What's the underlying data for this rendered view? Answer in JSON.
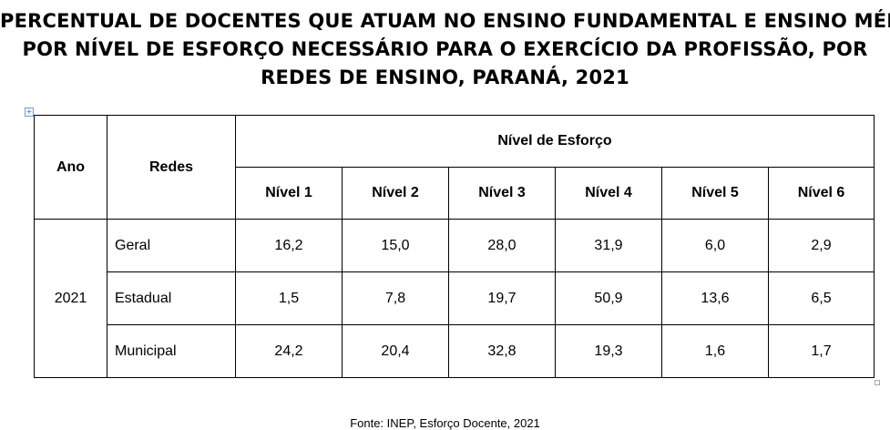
{
  "title_lines": [
    "PERCENTUAL DE DOCENTES QUE ATUAM NO ENSINO FUNDAMENTAL E ENSINO MÉDIO",
    "POR NÍVEL DE ESFORÇO NECESSÁRIO PARA O EXERCÍCIO DA PROFISSÃO, POR",
    "REDES DE ENSINO, PARANÁ, 2021"
  ],
  "table": {
    "col_ano": "Ano",
    "col_redes": "Redes",
    "group_header": "Nível de Esforço",
    "levels": [
      "Nível 1",
      "Nível 2",
      "Nível 3",
      "Nível 4",
      "Nível 5",
      "Nível 6"
    ],
    "year": "2021",
    "rows": [
      {
        "rede": "Geral",
        "values": [
          "16,2",
          "15,0",
          "28,0",
          "31,9",
          "6,0",
          "2,9"
        ]
      },
      {
        "rede": "Estadual",
        "values": [
          "1,5",
          "7,8",
          "19,7",
          "50,9",
          "13,6",
          "6,5"
        ]
      },
      {
        "rede": "Municipal",
        "values": [
          "24,2",
          "20,4",
          "32,8",
          "19,3",
          "1,6",
          "1,7"
        ]
      }
    ]
  },
  "source": "Fonte: INEP, Esforço Docente, 2021",
  "table_handle_icon": "move-handle-icon"
}
